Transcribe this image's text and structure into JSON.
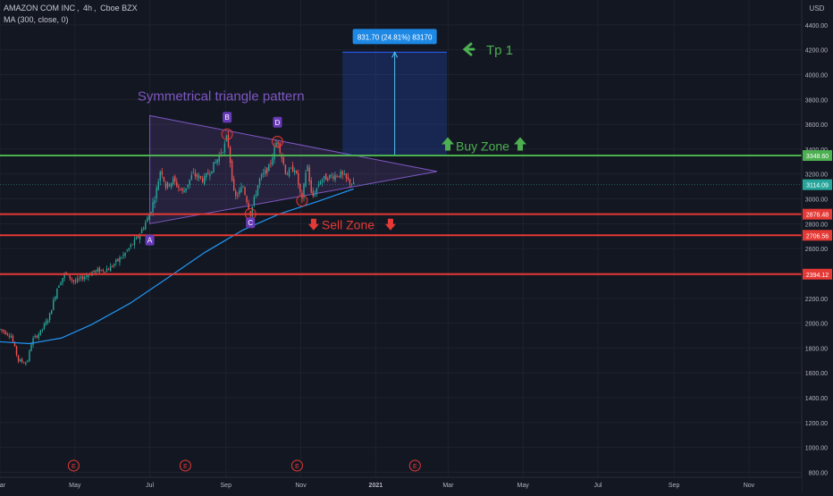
{
  "header": {
    "symbol": "AMAZON COM INC",
    "interval": "4h",
    "exchange": "Cboe BZX",
    "indicator": "MA (300, close, 0)"
  },
  "price_axis": {
    "currency": "USD",
    "ticks": [
      "800.00",
      "1000.00",
      "1200.00",
      "1400.00",
      "1600.00",
      "1800.00",
      "2000.00",
      "2200.00",
      "2400.00",
      "2600.00",
      "2800.00",
      "3000.00",
      "3200.00",
      "3400.00",
      "3600.00",
      "3800.00",
      "4000.00",
      "4200.00",
      "4400.00"
    ]
  },
  "time_axis": {
    "ticks": [
      {
        "label": "Mar",
        "date": "2020-03-01"
      },
      {
        "label": "May",
        "date": "2020-05-01"
      },
      {
        "label": "Jul",
        "date": "2020-07-01"
      },
      {
        "label": "Sep",
        "date": "2020-09-01"
      },
      {
        "label": "Nov",
        "date": "2020-11-01"
      },
      {
        "label": "2021",
        "date": "2021-01-01"
      },
      {
        "label": "Mar",
        "date": "2021-03-01"
      },
      {
        "label": "May",
        "date": "2021-05-01"
      },
      {
        "label": "Jul",
        "date": "2021-07-01"
      },
      {
        "label": "Sep",
        "date": "2021-09-01"
      },
      {
        "label": "Nov",
        "date": "2021-11-01"
      }
    ]
  },
  "earnings_markers": [
    {
      "label": "E",
      "date": "2020-04-30"
    },
    {
      "label": "E",
      "date": "2020-07-30"
    },
    {
      "label": "E",
      "date": "2020-10-29"
    },
    {
      "label": "E",
      "date": "2021-02-02"
    }
  ],
  "colors": {
    "background": "#131722",
    "up": "#26a69a",
    "down": "#ef5350",
    "ma": "#2196f3",
    "support_green": "#4caf50",
    "sell_red": "#e53935",
    "triangle": "#7e57c2",
    "projection": "#2962ff"
  },
  "chart_data": {
    "type": "candlestick",
    "title": "",
    "xlabel": "",
    "ylabel": "USD",
    "ylim": [
      760,
      4600
    ],
    "xlim": [
      "2020-03-01",
      "2021-12-14"
    ],
    "grid": true,
    "price_path": [
      [
        "2020-03-01",
        1950
      ],
      [
        "2020-03-10",
        1900
      ],
      [
        "2020-03-16",
        1700
      ],
      [
        "2020-03-23",
        1680
      ],
      [
        "2020-03-27",
        1860
      ],
      [
        "2020-04-03",
        1930
      ],
      [
        "2020-04-10",
        2050
      ],
      [
        "2020-04-17",
        2300
      ],
      [
        "2020-04-23",
        2400
      ],
      [
        "2020-05-01",
        2330
      ],
      [
        "2020-05-15",
        2410
      ],
      [
        "2020-05-29",
        2440
      ],
      [
        "2020-06-10",
        2550
      ],
      [
        "2020-06-22",
        2700
      ],
      [
        "2020-07-01",
        2880
      ],
      [
        "2020-07-06",
        3050
      ],
      [
        "2020-07-10",
        3250
      ],
      [
        "2020-07-14",
        3100
      ],
      [
        "2020-07-20",
        3150
      ],
      [
        "2020-07-28",
        3050
      ],
      [
        "2020-08-05",
        3200
      ],
      [
        "2020-08-14",
        3150
      ],
      [
        "2020-08-24",
        3300
      ],
      [
        "2020-09-01",
        3450
      ],
      [
        "2020-09-02",
        3520
      ],
      [
        "2020-09-08",
        3000
      ],
      [
        "2020-09-15",
        3100
      ],
      [
        "2020-09-21",
        2880
      ],
      [
        "2020-09-28",
        3150
      ],
      [
        "2020-10-06",
        3250
      ],
      [
        "2020-10-13",
        3480
      ],
      [
        "2020-10-20",
        3200
      ],
      [
        "2020-10-27",
        3250
      ],
      [
        "2020-11-02",
        2980
      ],
      [
        "2020-11-06",
        3300
      ],
      [
        "2020-11-10",
        3000
      ],
      [
        "2020-11-17",
        3150
      ],
      [
        "2020-11-25",
        3180
      ],
      [
        "2020-12-03",
        3200
      ],
      [
        "2020-12-09",
        3150
      ],
      [
        "2020-12-14",
        3114.09
      ]
    ],
    "series": [
      {
        "name": "MA (300, close, 0)",
        "points": [
          [
            "2020-03-01",
            1850
          ],
          [
            "2020-03-25",
            1835
          ],
          [
            "2020-04-20",
            1880
          ],
          [
            "2020-05-15",
            1990
          ],
          [
            "2020-06-15",
            2160
          ],
          [
            "2020-07-15",
            2360
          ],
          [
            "2020-08-15",
            2570
          ],
          [
            "2020-09-15",
            2750
          ],
          [
            "2020-10-15",
            2880
          ],
          [
            "2020-11-15",
            2980
          ],
          [
            "2020-12-14",
            3080
          ]
        ]
      }
    ],
    "last_price": 3114.09,
    "horizontal_lines": [
      {
        "name": "buy-zone-line",
        "price": 3348.6,
        "label": "3348.60",
        "color": "#4caf50"
      },
      {
        "name": "sell-zone-line-1",
        "price": 2876.48,
        "label": "2876.48",
        "color": "#e53935"
      },
      {
        "name": "sell-zone-line-2",
        "price": 2706.56,
        "label": "2706.56",
        "color": "#e53935"
      },
      {
        "name": "sell-zone-line-3",
        "price": 2394.12,
        "label": "2394.12",
        "color": "#e53935"
      }
    ],
    "triangle": {
      "points": [
        [
          "2020-07-01",
          3670
        ],
        [
          "2020-07-01",
          2800
        ],
        [
          "2021-02-20",
          3220
        ]
      ]
    },
    "pattern_points": [
      {
        "label": "A",
        "date": "2020-07-01",
        "price": 2740,
        "pos": "below"
      },
      {
        "label": "B",
        "date": "2020-09-02",
        "price": 3520,
        "pos": "above"
      },
      {
        "label": "C",
        "date": "2020-09-21",
        "price": 2880,
        "pos": "below"
      },
      {
        "label": "D",
        "date": "2020-10-13",
        "price": 3480,
        "pos": "above"
      }
    ],
    "circles": [
      {
        "date": "2020-09-02",
        "price": 3520
      },
      {
        "date": "2020-09-21",
        "price": 2880
      },
      {
        "date": "2020-10-13",
        "price": 3460
      },
      {
        "date": "2020-11-02",
        "price": 2985
      }
    ],
    "projection": {
      "start_date": "2020-12-05",
      "end_date": "2021-02-28",
      "from_price": 3348.6,
      "to_price": 4180.3,
      "label": "831.70 (24.81%) 83170"
    },
    "annotations": [
      {
        "name": "pattern-title",
        "text": "Symmetrical triangle pattern",
        "date": "2020-06-21",
        "price": 3790,
        "color": "#7e57c2"
      },
      {
        "name": "tp1-label",
        "text": "Tp 1",
        "date": "2021-04-01",
        "price": 4175,
        "color": "#4caf50"
      },
      {
        "name": "buy-zone-label",
        "text": "Buy Zone",
        "date": "2021-03-08",
        "price": 3410,
        "color": "#4caf50"
      },
      {
        "name": "sell-zone-label",
        "text": "Sell Zone",
        "date": "2020-11-18",
        "price": 2790,
        "color": "#e53935"
      }
    ]
  }
}
